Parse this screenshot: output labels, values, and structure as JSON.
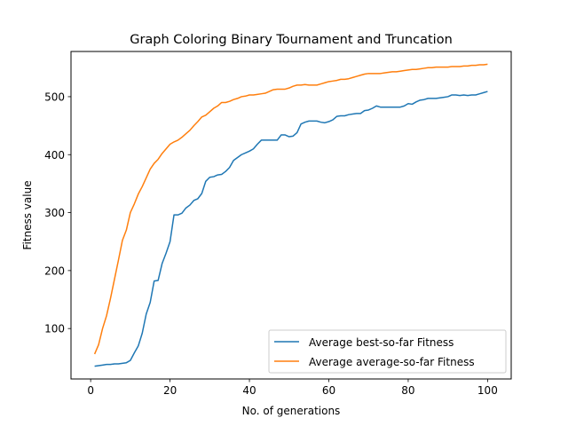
{
  "chart_data": {
    "type": "line",
    "title": "Graph Coloring Binary Tournament and Truncation",
    "xlabel": "No. of generations",
    "ylabel": "Fitness value",
    "xlim": [
      -4.95,
      105.95
    ],
    "ylim": [
      13,
      578
    ],
    "xticks": [
      0,
      20,
      40,
      60,
      80,
      100
    ],
    "yticks": [
      100,
      200,
      300,
      400,
      500
    ],
    "grid": false,
    "legend_position": "lower-right",
    "series": [
      {
        "name": "Average best-so-far Fitness",
        "color": "#1f77b4",
        "x": [
          1,
          2,
          3,
          4,
          5,
          6,
          7,
          8,
          9,
          10,
          11,
          12,
          13,
          14,
          15,
          16,
          17,
          18,
          19,
          20,
          21,
          22,
          23,
          24,
          25,
          26,
          27,
          28,
          29,
          30,
          31,
          32,
          33,
          34,
          35,
          36,
          37,
          38,
          39,
          40,
          41,
          42,
          43,
          44,
          45,
          46,
          47,
          48,
          49,
          50,
          51,
          52,
          53,
          54,
          55,
          56,
          57,
          58,
          59,
          60,
          61,
          62,
          63,
          64,
          65,
          66,
          67,
          68,
          69,
          70,
          71,
          72,
          73,
          74,
          75,
          76,
          77,
          78,
          79,
          80,
          81,
          82,
          83,
          84,
          85,
          86,
          87,
          88,
          89,
          90,
          91,
          92,
          93,
          94,
          95,
          96,
          97,
          98,
          99,
          100
        ],
        "values": [
          35,
          36,
          37,
          38,
          38,
          39,
          39,
          40,
          41,
          45,
          58,
          70,
          92,
          125,
          145,
          182,
          183,
          212,
          230,
          250,
          296,
          296,
          299,
          308,
          313,
          321,
          324,
          333,
          354,
          361,
          362,
          365,
          366,
          371,
          378,
          390,
          395,
          400,
          403,
          406,
          410,
          418,
          425,
          425,
          425,
          425,
          425,
          434,
          434,
          431,
          432,
          438,
          453,
          456,
          458,
          458,
          458,
          456,
          455,
          457,
          460,
          466,
          467,
          467,
          469,
          470,
          471,
          471,
          476,
          477,
          480,
          484,
          482,
          482,
          482,
          482,
          482,
          482,
          484,
          488,
          487,
          491,
          494,
          495,
          497,
          497,
          497,
          498,
          499,
          500,
          503,
          503,
          502,
          503,
          502,
          503,
          503,
          505,
          507,
          509
        ]
      },
      {
        "name": "Average average-so-far Fitness",
        "color": "#ff7f0e",
        "x": [
          1,
          2,
          3,
          4,
          5,
          6,
          7,
          8,
          9,
          10,
          11,
          12,
          13,
          14,
          15,
          16,
          17,
          18,
          19,
          20,
          21,
          22,
          23,
          24,
          25,
          26,
          27,
          28,
          29,
          30,
          31,
          32,
          33,
          34,
          35,
          36,
          37,
          38,
          39,
          40,
          41,
          42,
          43,
          44,
          45,
          46,
          47,
          48,
          49,
          50,
          51,
          52,
          53,
          54,
          55,
          56,
          57,
          58,
          59,
          60,
          61,
          62,
          63,
          64,
          65,
          66,
          67,
          68,
          69,
          70,
          71,
          72,
          73,
          74,
          75,
          76,
          77,
          78,
          79,
          80,
          81,
          82,
          83,
          84,
          85,
          86,
          87,
          88,
          89,
          90,
          91,
          92,
          93,
          94,
          95,
          96,
          97,
          98,
          99,
          100
        ],
        "values": [
          56,
          72,
          100,
          122,
          152,
          185,
          218,
          252,
          270,
          300,
          315,
          332,
          345,
          360,
          375,
          385,
          392,
          402,
          410,
          418,
          422,
          425,
          430,
          436,
          442,
          450,
          457,
          465,
          468,
          474,
          480,
          484,
          490,
          490,
          492,
          495,
          497,
          500,
          501,
          503,
          503,
          504,
          505,
          506,
          509,
          512,
          513,
          513,
          513,
          515,
          518,
          520,
          520,
          521,
          520,
          520,
          520,
          522,
          524,
          526,
          527,
          528,
          530,
          530,
          531,
          533,
          535,
          537,
          539,
          540,
          540,
          540,
          540,
          541,
          542,
          543,
          543,
          544,
          545,
          546,
          547,
          547,
          548,
          549,
          550,
          550,
          551,
          551,
          551,
          551,
          552,
          552,
          552,
          553,
          553,
          554,
          554,
          555,
          555,
          556
        ]
      }
    ]
  }
}
